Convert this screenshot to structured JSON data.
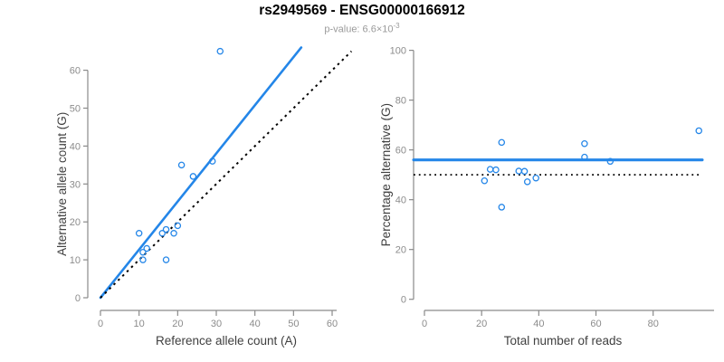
{
  "header": {
    "title": "rs2949569 - ENSG00000166912",
    "subtitle_prefix": "p-value: 6.6×10",
    "subtitle_exponent": "-3"
  },
  "colors": {
    "accent_blue": "#2486E8",
    "dotted_black": "#000000",
    "axis_line": "#8A8A8A",
    "tick_label": "#8C8C8C",
    "axis_title": "#404040",
    "title_text": "#000000",
    "subtitle_text": "#9A9A9A",
    "background": "#FFFFFF"
  },
  "chart_data": [
    {
      "type": "scatter",
      "name": "allele-counts",
      "xlabel": "Reference allele count (A)",
      "ylabel": "Alternative allele count (G)",
      "xticks": [
        0,
        10,
        20,
        30,
        40,
        50,
        60
      ],
      "yticks": [
        0,
        10,
        20,
        30,
        40,
        50,
        60
      ],
      "xlim": [
        0,
        65
      ],
      "ylim": [
        0,
        66
      ],
      "grid": false,
      "legend": null,
      "marker": "open-circle",
      "points": [
        [
          31,
          65
        ],
        [
          21,
          35
        ],
        [
          24,
          32
        ],
        [
          29,
          36
        ],
        [
          10,
          17
        ],
        [
          16,
          17
        ],
        [
          17,
          18
        ],
        [
          19,
          17
        ],
        [
          20,
          19
        ],
        [
          11,
          12
        ],
        [
          12,
          13
        ],
        [
          11,
          10
        ],
        [
          17,
          10
        ]
      ],
      "lines": [
        {
          "role": "fitted-ratio",
          "style": "solid",
          "x1": 0,
          "y1": 0,
          "x2": 52,
          "y2": 66
        },
        {
          "role": "identity",
          "style": "dotted",
          "x1": 0,
          "y1": 0,
          "x2": 65,
          "y2": 65
        }
      ]
    },
    {
      "type": "scatter",
      "name": "percentage-vs-reads",
      "xlabel": "Total number of reads",
      "ylabel": "Percentage alternative (G)",
      "xticks": [
        0,
        20,
        40,
        60,
        80
      ],
      "yticks": [
        0,
        20,
        40,
        60,
        80,
        100
      ],
      "xlim": [
        0,
        101
      ],
      "ylim": [
        0,
        100
      ],
      "grid": false,
      "legend": null,
      "marker": "open-circle",
      "points": [
        [
          96,
          67.7
        ],
        [
          56,
          62.5
        ],
        [
          56,
          57.1
        ],
        [
          65,
          55.4
        ],
        [
          27,
          63
        ],
        [
          33,
          51.5
        ],
        [
          35,
          51.4
        ],
        [
          36,
          47.2
        ],
        [
          39,
          48.7
        ],
        [
          23,
          52.2
        ],
        [
          25,
          52
        ],
        [
          21,
          47.6
        ],
        [
          27,
          37
        ]
      ],
      "lines": [
        {
          "role": "mean-percentage",
          "style": "solid",
          "y": 56
        },
        {
          "role": "fifty-percent",
          "style": "dotted",
          "y": 50
        }
      ]
    }
  ]
}
